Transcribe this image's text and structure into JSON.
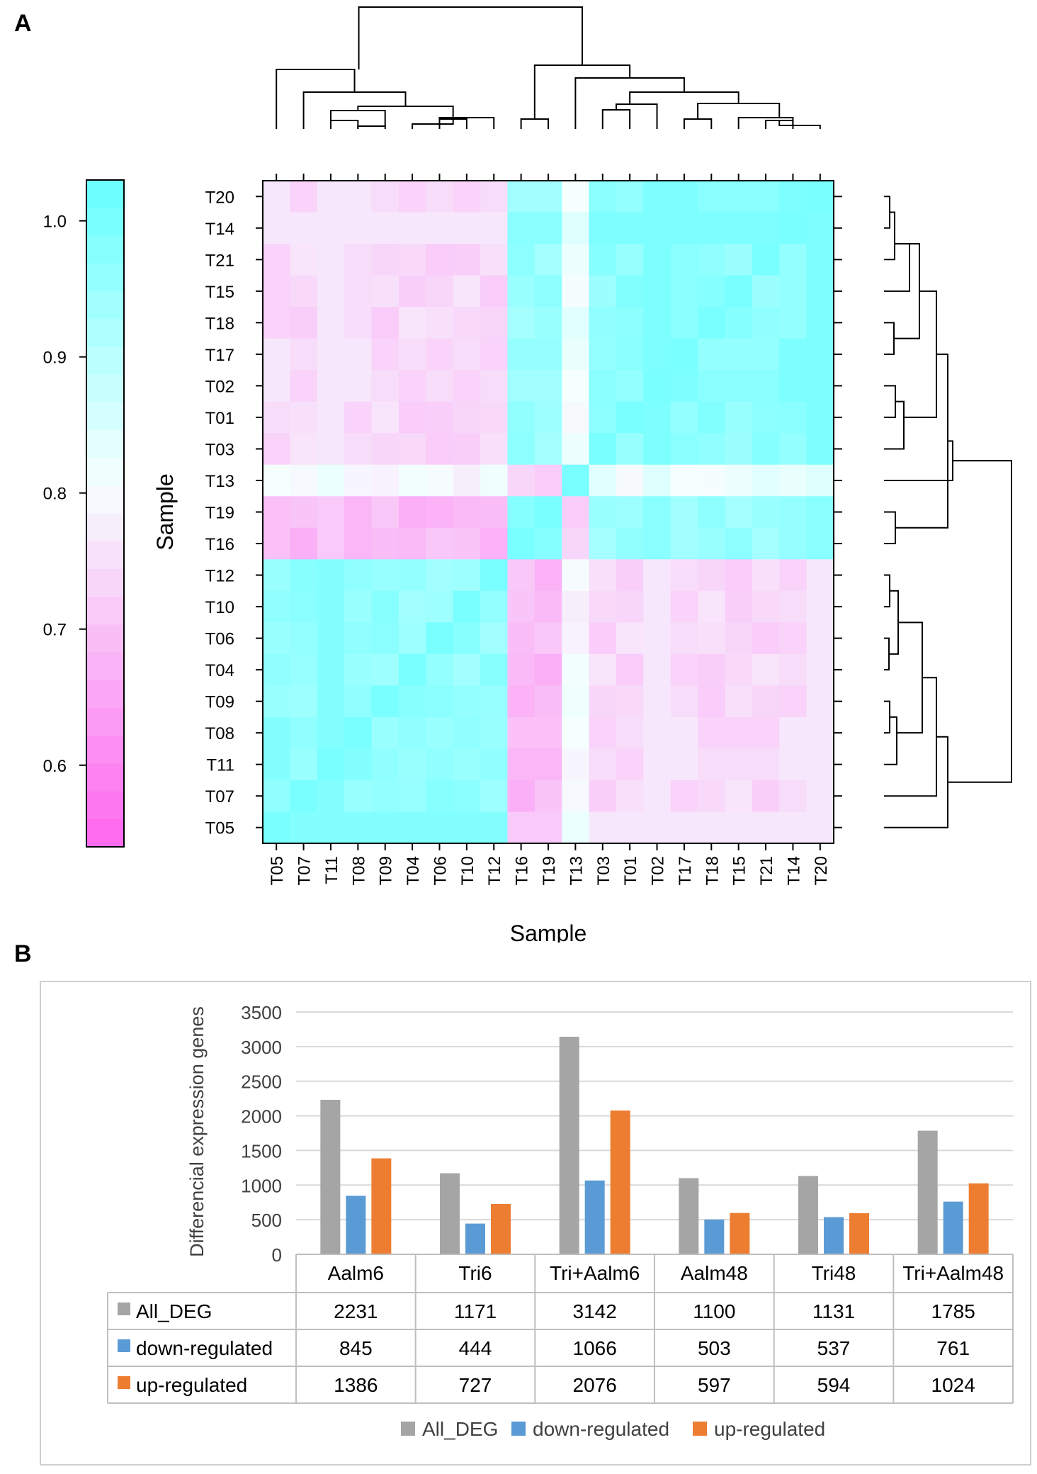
{
  "panel_labels": {
    "a": "A",
    "b": "B"
  },
  "chart_data": [
    {
      "type": "heatmap",
      "panel": "A",
      "xlabel": "Sample",
      "ylabel": "Sample",
      "x_order": [
        "T05",
        "T07",
        "T11",
        "T08",
        "T09",
        "T04",
        "T06",
        "T10",
        "T12",
        "T16",
        "T19",
        "T13",
        "T03",
        "T01",
        "T02",
        "T17",
        "T18",
        "T15",
        "T21",
        "T14",
        "T20"
      ],
      "y_order_top_to_bottom": [
        "T20",
        "T14",
        "T21",
        "T15",
        "T18",
        "T17",
        "T02",
        "T01",
        "T03",
        "T13",
        "T19",
        "T16",
        "T12",
        "T10",
        "T06",
        "T04",
        "T09",
        "T08",
        "T11",
        "T07",
        "T05"
      ],
      "colorbar": {
        "range": [
          0.54,
          1.03
        ],
        "ticks": [
          0.6,
          0.7,
          0.8,
          0.9,
          1.0
        ],
        "tick_labels": [
          "0.6",
          "0.7",
          "0.8",
          "0.9",
          "1.0"
        ],
        "low_color": "#ff66ee",
        "mid_color": "#f6fffe",
        "high_color": "#66ffff",
        "mid_value": 0.805
      },
      "groups": {
        "g1": [
          "T05",
          "T07",
          "T11",
          "T08",
          "T09",
          "T04",
          "T06",
          "T10",
          "T12"
        ],
        "g2": [
          "T16",
          "T19"
        ],
        "g3": [
          "T13"
        ],
        "g4": [
          "T03",
          "T01",
          "T02",
          "T17",
          "T18",
          "T15",
          "T21",
          "T14",
          "T20"
        ]
      },
      "block_correlations": {
        "g1_g1": 0.96,
        "g1_g2": 0.69,
        "g1_g3": 0.8,
        "g1_g4": 0.74,
        "g2_g2": 0.97,
        "g2_g3": 0.74,
        "g2_g4": 0.95,
        "g3_g3": 1.0,
        "g3_g4": 0.82,
        "g4_g4": 0.97
      },
      "diagonal": 1.0,
      "top_dendrogram": [
        [
          "T11",
          "T08"
        ],
        [
          "T09",
          "T04"
        ],
        [
          "T06",
          "T10"
        ],
        [
          "T16",
          "T19"
        ],
        [
          "T03",
          "T01"
        ],
        [
          "T17",
          "T18"
        ],
        [
          "T21",
          "T14"
        ]
      ],
      "right_dendrogram": [
        [
          "T20",
          "T14"
        ],
        [
          "T18",
          "T17"
        ],
        [
          "T02",
          "T01"
        ],
        [
          "T19",
          "T16"
        ],
        [
          "T12",
          "T10"
        ],
        [
          "T06",
          "T04"
        ],
        [
          "T09",
          "T08"
        ]
      ]
    },
    {
      "type": "bar",
      "panel": "B",
      "ylabel": "Differencial expression genes",
      "ylim": [
        0,
        3500
      ],
      "yticks": [
        "0",
        "500",
        "1000",
        "1500",
        "2000",
        "2500",
        "3000",
        "3500"
      ],
      "ytick_values": [
        0,
        500,
        1000,
        1500,
        2000,
        2500,
        3000,
        3500
      ],
      "categories": [
        "Aalm6",
        "Tri6",
        "Tri+Aalm6",
        "Aalm48",
        "Tri48",
        "Tri+Aalm48"
      ],
      "series": [
        {
          "name": "All_DEG",
          "color": "#a5a5a5",
          "values": [
            2231,
            1171,
            3142,
            1100,
            1131,
            1785
          ]
        },
        {
          "name": "down-regulated",
          "color": "#5b9bd5",
          "values": [
            845,
            444,
            1066,
            503,
            537,
            761
          ]
        },
        {
          "name": "up-regulated",
          "color": "#ed7d31",
          "values": [
            1386,
            727,
            2076,
            597,
            594,
            1024
          ]
        }
      ],
      "table_rows": [
        {
          "label": "All_DEG",
          "cells": [
            "2231",
            "1171",
            "3142",
            "1100",
            "1131",
            "1785"
          ]
        },
        {
          "label": "down-regulated",
          "cells": [
            "845",
            "444",
            "1066",
            "503",
            "537",
            "761"
          ]
        },
        {
          "label": "up-regulated",
          "cells": [
            "1386",
            "727",
            "2076",
            "597",
            "594",
            "1024"
          ]
        }
      ],
      "legend": [
        "All_DEG",
        "down-regulated",
        "up-regulated"
      ]
    }
  ]
}
